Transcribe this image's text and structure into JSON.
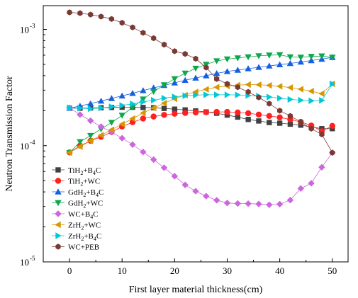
{
  "chart_data": {
    "type": "line",
    "title": "",
    "xlabel": "First layer material thickness(cm)",
    "ylabel": "Neutron Transmission Factor",
    "xlim": [
      -5,
      53
    ],
    "ylim": [
      1e-05,
      0.0016
    ],
    "yscale": "log",
    "grid": false,
    "legend_position": "bottom-left",
    "x_ticks": [
      "0",
      "10",
      "20",
      "30",
      "40",
      "50"
    ],
    "x_tick_values": [
      0,
      10,
      20,
      30,
      40,
      50
    ],
    "y_ticks": [
      {
        "value": 0.001,
        "base": "10",
        "exp": "-3"
      },
      {
        "value": 0.0001,
        "base": "10",
        "exp": "-4"
      },
      {
        "value": 1e-05,
        "base": "10",
        "exp": "-5"
      }
    ],
    "x": [
      0,
      2,
      4,
      6,
      8,
      10,
      12,
      14,
      16,
      18,
      20,
      22,
      24,
      26,
      28,
      30,
      32,
      34,
      36,
      38,
      40,
      42,
      44,
      46,
      48,
      50
    ],
    "series": [
      {
        "legend": [
          "TiH",
          "2",
          "+B",
          "4",
          "C"
        ],
        "color": "#404040",
        "marker": "square",
        "values": [
          0.00021,
          0.00021,
          0.000211,
          0.000212,
          0.000213,
          0.000214,
          0.000214,
          0.000213,
          0.000212,
          0.000209,
          0.000206,
          0.000203,
          0.000199,
          0.000195,
          0.00019,
          0.000183,
          0.000176,
          0.000168,
          0.000163,
          0.000158,
          0.000156,
          0.000153,
          0.00015,
          0.000145,
          0.00014,
          0.00014
        ]
      },
      {
        "legend": [
          "TiH",
          "2",
          "+WC",
          "",
          ""
        ],
        "color": "#ff2020",
        "marker": "circle",
        "values": [
          8.75e-05,
          0.0001,
          0.00011,
          0.000119,
          0.000131,
          0.000146,
          0.000159,
          0.000171,
          0.000178,
          0.000184,
          0.000188,
          0.000191,
          0.000193,
          0.000194,
          0.000195,
          0.000195,
          0.000193,
          0.00019,
          0.000185,
          0.00018,
          0.000175,
          0.000168,
          0.00016,
          0.000149,
          0.000133,
          0.000148
        ]
      },
      {
        "legend": [
          "GdH",
          "2",
          "+B",
          "4",
          "C"
        ],
        "color": "#1560e0",
        "marker": "triangle-up",
        "values": [
          0.00021,
          0.000219,
          0.00023,
          0.000242,
          0.000255,
          0.000268,
          0.000282,
          0.000298,
          0.000314,
          0.00033,
          0.000347,
          0.000365,
          0.000382,
          0.0004,
          0.000418,
          0.000435,
          0.000447,
          0.00046,
          0.000472,
          0.000485,
          0.000498,
          0.00051,
          0.000525,
          0.00054,
          0.000555,
          0.000575
        ]
      },
      {
        "legend": [
          "GdH",
          "2",
          "+WC",
          "",
          ""
        ],
        "color": "#0ea84a",
        "marker": "triangle-down",
        "values": [
          8.7e-05,
          0.000108,
          0.000122,
          0.000139,
          0.000158,
          0.000182,
          0.000214,
          0.000251,
          0.000292,
          0.000333,
          0.000376,
          0.00042,
          0.000462,
          0.0005,
          0.000535,
          0.000555,
          0.000568,
          0.00058,
          0.000592,
          0.0006,
          0.000604,
          0.00058,
          0.000575,
          0.000585,
          0.00059,
          0.000575
        ]
      },
      {
        "legend": [
          "WC+B",
          "4",
          "C",
          "",
          ""
        ],
        "color": "#cc66dd",
        "marker": "diamond",
        "values": [
          0.000212,
          0.000185,
          0.000164,
          0.000146,
          0.000131,
          0.000116,
          0.000102,
          8.82e-05,
          7.58e-05,
          6.46e-05,
          5.46e-05,
          4.6e-05,
          4.06e-05,
          3.68e-05,
          3.39e-05,
          3.21e-05,
          3.18e-05,
          3.17e-05,
          3.15e-05,
          3.1e-05,
          3.14e-05,
          3.4e-05,
          4.28e-05,
          4.75e-05,
          6.52e-05,
          8.7e-05
        ]
      },
      {
        "legend": [
          "ZrH",
          "2",
          "+WC",
          "",
          ""
        ],
        "color": "#d79700",
        "marker": "triangle-left",
        "values": [
          8.7e-05,
          9.8e-05,
          0.00011,
          0.000123,
          0.000137,
          0.000153,
          0.000171,
          0.000191,
          0.000211,
          0.000232,
          0.000253,
          0.000272,
          0.00029,
          0.000305,
          0.000318,
          0.000326,
          0.000332,
          0.000335,
          0.000334,
          0.00033,
          0.000324,
          0.000316,
          0.000306,
          0.000294,
          0.00028,
          0.00034
        ]
      },
      {
        "legend": [
          "ZrH",
          "2",
          "+B",
          "4",
          "C"
        ],
        "color": "#00c8d8",
        "marker": "triangle-right",
        "values": [
          0.000212,
          0.00021,
          0.000208,
          0.000211,
          0.000216,
          0.000222,
          0.000229,
          0.000238,
          0.000246,
          0.000256,
          0.000263,
          0.000269,
          0.000272,
          0.000274,
          0.000274,
          0.000274,
          0.000273,
          0.00027,
          0.000267,
          0.000262,
          0.000256,
          0.00025,
          0.000246,
          0.000243,
          0.000245,
          0.00034
        ]
      },
      {
        "legend": [
          "WC+PEB",
          "",
          "",
          "",
          ""
        ],
        "color": "#7a3a34",
        "marker": "hexagon",
        "values": [
          0.0014,
          0.00138,
          0.00134,
          0.00129,
          0.00123,
          0.00114,
          0.00104,
          0.000935,
          0.00084,
          0.00074,
          0.00065,
          0.000615,
          0.00056,
          0.00047,
          0.000375,
          0.00034,
          0.000318,
          0.00029,
          0.00026,
          0.00023,
          0.0002,
          0.00018,
          0.00016,
          0.00014,
          0.000125,
          8.7e-05
        ]
      }
    ]
  }
}
